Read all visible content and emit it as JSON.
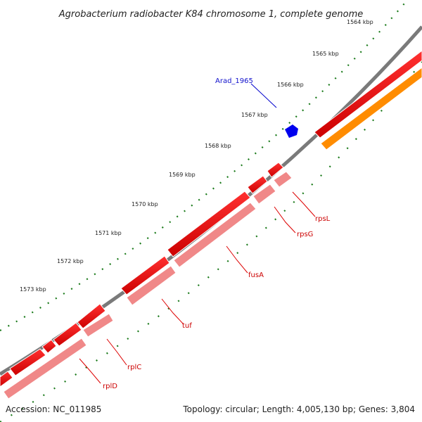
{
  "title": "Agrobacterium radiobacter K84 chromosome 1, complete genome",
  "footer": {
    "accession": "Accession: NC_011985",
    "summary": "Topology: circular; Length: 4,005,130 bp; Genes: 3,804"
  },
  "scale_labels": [
    "1564 kbp",
    "1565 kbp",
    "1566 kbp",
    "1567 kbp",
    "1568 kbp",
    "1569 kbp",
    "1570 kbp",
    "1571 kbp",
    "1572 kbp",
    "1573 kbp"
  ],
  "gene_labels": {
    "arad": "Arad_1965",
    "rpsL": "rpsL",
    "rpsG": "rpsG",
    "fusA": "fusA",
    "tuf": "tuf",
    "rplC": "rplC",
    "rplD": "rplD"
  },
  "colors": {
    "backbone": "#7a7a7a",
    "gene": "#ee0000",
    "cds": "#f08888",
    "orange": "#ff8c00",
    "blue": "#0000ee",
    "tick": "#1a7a1a",
    "label_line_red": "#dd0000",
    "label_line_blue": "#0000cc"
  }
}
